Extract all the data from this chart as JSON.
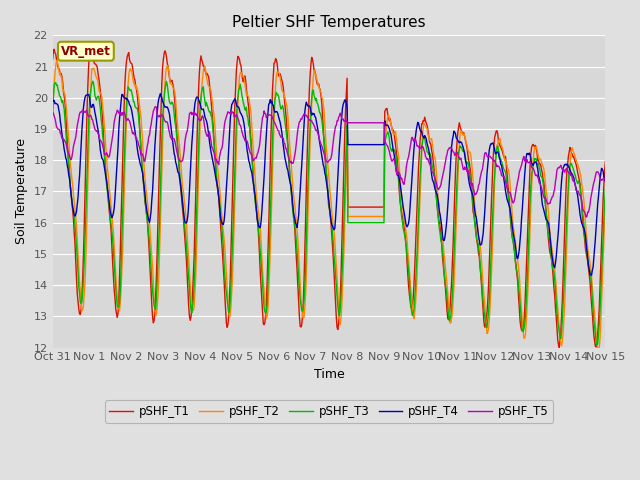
{
  "title": "Peltier SHF Temperatures",
  "ylabel": "Soil Temperature",
  "xlabel": "Time",
  "ylim": [
    12.0,
    22.0
  ],
  "yticks": [
    12.0,
    13.0,
    14.0,
    15.0,
    16.0,
    17.0,
    18.0,
    19.0,
    20.0,
    21.0,
    22.0
  ],
  "annotation_text": "VR_met",
  "annotation_color": "#8B0000",
  "annotation_bg": "#FFFFCC",
  "annotation_border": "#999900",
  "series_colors": {
    "pSHF_T1": "#DD1100",
    "pSHF_T2": "#FF8800",
    "pSHF_T3": "#00BB00",
    "pSHF_T4": "#0000BB",
    "pSHF_T5": "#BB00BB"
  },
  "bg_color": "#E0E0E0",
  "plot_bg_color": "#D8D8D8",
  "grid_color": "#FFFFFF",
  "start_date": "2000-10-31",
  "end_date": "2000-11-15",
  "n_points": 720
}
